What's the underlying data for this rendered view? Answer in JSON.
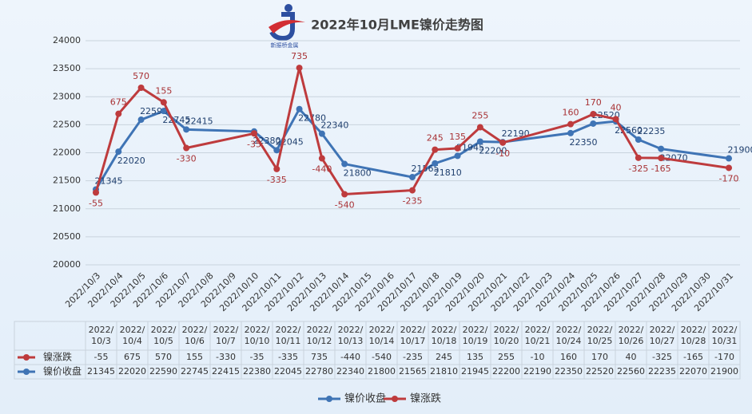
{
  "chart_data": {
    "type": "line",
    "title": "2022年10月LME镍价走势图",
    "logo_text": "新振桥金属",
    "xticks": [
      "2022/10/3",
      "2022/10/4",
      "2022/10/5",
      "2022/10/6",
      "2022/10/7",
      "2022/10/8",
      "2022/10/9",
      "2022/10/10",
      "2022/10/11",
      "2022/10/12",
      "2022/10/13",
      "2022/10/14",
      "2022/10/15",
      "2022/10/16",
      "2022/10/17",
      "2022/10/18",
      "2022/10/19",
      "2022/10/20",
      "2022/10/21",
      "2022/10/22",
      "2022/10/23",
      "2022/10/24",
      "2022/10/25",
      "2022/10/26",
      "2022/10/27",
      "2022/10/28",
      "2022/10/29",
      "2022/10/30",
      "2022/10/31"
    ],
    "categories": [
      "2022/10/3",
      "2022/10/4",
      "2022/10/5",
      "2022/10/6",
      "2022/10/7",
      "2022/10/10",
      "2022/10/11",
      "2022/10/12",
      "2022/10/13",
      "2022/10/14",
      "2022/10/17",
      "2022/10/18",
      "2022/10/19",
      "2022/10/20",
      "2022/10/21",
      "2022/10/24",
      "2022/10/25",
      "2022/10/26",
      "2022/10/27",
      "2022/10/28",
      "2022/10/31"
    ],
    "series": [
      {
        "name": "镍价收盘",
        "color": "#3f74b5",
        "values": [
          21345,
          22020,
          22590,
          22745,
          22415,
          22380,
          22045,
          22780,
          22340,
          21800,
          21565,
          21810,
          21945,
          22200,
          22190,
          22350,
          22520,
          22560,
          22235,
          22070,
          21900
        ]
      },
      {
        "name": "镍涨跌",
        "color": "#be3b3d",
        "stacked": true,
        "values": [
          -55,
          675,
          570,
          155,
          -330,
          -35,
          -335,
          735,
          -440,
          -540,
          -235,
          245,
          135,
          255,
          -10,
          160,
          170,
          40,
          -325,
          -165,
          -170
        ]
      }
    ],
    "ylim": [
      20000,
      24000
    ],
    "yticks": [
      20000,
      20500,
      21000,
      21500,
      22000,
      22500,
      23000,
      23500,
      24000
    ],
    "grid": true,
    "legend": "bottom",
    "data_table": true
  }
}
